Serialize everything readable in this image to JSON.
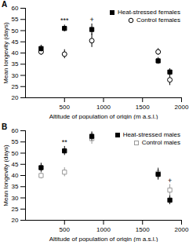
{
  "chart_data": [
    {
      "type": "scatter",
      "title": "A",
      "xlabel": "Altitude of population of origin (m a.s.l.)",
      "ylabel": "Mean longevity (days)",
      "xlim": [
        0,
        2000
      ],
      "xticks": [
        500,
        1000,
        1500,
        2000
      ],
      "ylim": [
        20,
        60
      ],
      "yticks": [
        20,
        25,
        30,
        35,
        40,
        45,
        50,
        55,
        60
      ],
      "legend": "upper right",
      "series": [
        {
          "name": "Heat-stressed females",
          "color": "#000000",
          "marker": "square",
          "x": [
            200,
            500,
            850,
            1700,
            1850
          ],
          "values": [
            42.0,
            51.0,
            50.5,
            36.5,
            31.5
          ],
          "yerr": [
            1.5,
            1.5,
            2.5,
            1.5,
            1.5
          ]
        },
        {
          "name": "Control females",
          "color": "#000000",
          "marker": "open_circle",
          "x": [
            200,
            500,
            850,
            1700,
            1850
          ],
          "values": [
            40.5,
            39.5,
            45.5,
            40.5,
            28.0
          ],
          "yerr": [
            1.5,
            2.0,
            3.0,
            1.5,
            2.5
          ]
        }
      ],
      "annotations": [
        {
          "x": 500,
          "y": 53.5,
          "text": "***"
        },
        {
          "x": 850,
          "y": 54.0,
          "text": "+"
        }
      ]
    },
    {
      "type": "scatter",
      "title": "B",
      "xlabel": "Altitude of population of origin (m a.s.l.)",
      "ylabel": "Mean longevity (days)",
      "xlim": [
        0,
        2000
      ],
      "xticks": [
        500,
        1000,
        1500,
        2000
      ],
      "ylim": [
        20,
        60
      ],
      "yticks": [
        20,
        25,
        30,
        35,
        40,
        45,
        50,
        55,
        60
      ],
      "legend": "upper right",
      "series": [
        {
          "name": "Heat-stressed males",
          "color": "#000000",
          "marker": "square",
          "x": [
            200,
            500,
            850,
            1700,
            1850
          ],
          "values": [
            43.5,
            51.0,
            57.5,
            40.5,
            29.0
          ],
          "yerr": [
            2.0,
            2.0,
            2.0,
            2.5,
            2.0
          ]
        },
        {
          "name": "Control males",
          "color": "#999999",
          "marker": "open_square",
          "x": [
            200,
            500,
            850,
            1700,
            1850
          ],
          "values": [
            40.0,
            41.5,
            56.5,
            41.0,
            33.5
          ],
          "yerr": [
            1.5,
            2.0,
            2.5,
            2.5,
            2.5
          ]
        }
      ],
      "annotations": [
        {
          "x": 500,
          "y": 54.0,
          "text": "**"
        },
        {
          "x": 1850,
          "y": 36.5,
          "text": "+"
        }
      ]
    }
  ]
}
